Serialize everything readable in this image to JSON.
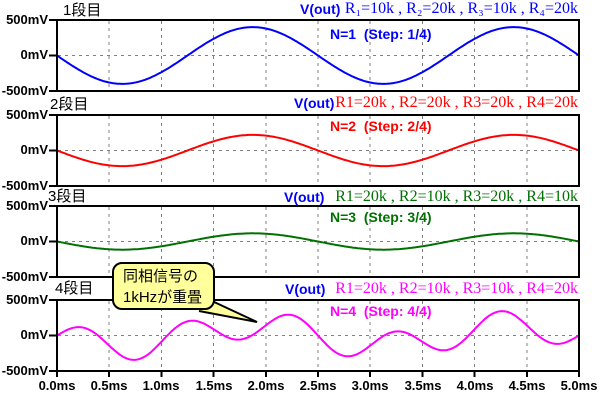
{
  "figure": {
    "background": "#FFFFFF",
    "axis_color": "#000000",
    "grid_color": "#808080",
    "x_axis_ticks": [
      "0.0ms",
      "0.5ms",
      "1.0ms",
      "1.5ms",
      "2.0ms",
      "2.5ms",
      "3.0ms",
      "3.5ms",
      "4.0ms",
      "4.5ms",
      "5.0ms"
    ],
    "y_axis_ticks": [
      "500mV",
      "0mV",
      "-500mV"
    ]
  },
  "callout": {
    "line1": "同相信号の",
    "line2": "1kHzが重畳",
    "fill_color": "#FFFF9C",
    "border_color": "#000000",
    "text_color": "#000000"
  },
  "chart_data": [
    {
      "type": "line",
      "panel_index": 1,
      "title": "1段目",
      "trace_label": "V(out)",
      "trace_label_color": "#0000FF",
      "r_values_label": "R₁=10k , R₂=20k , R₃=10k , R₄=20k",
      "step_label": "N=1  (Step: 1/4)",
      "color": "#0000FF",
      "xlim_ms": [
        0,
        5
      ],
      "ylim_mv": [
        -500,
        500
      ],
      "x_tick_step_ms": 0.5,
      "grid": true,
      "signal_model": {
        "description": "inverted 400 Hz sine, 400 mV amplitude",
        "components": [
          {
            "freq_hz": 400,
            "amplitude_mv": -400,
            "phase_deg": 0
          }
        ]
      },
      "key_points_t_ms_v_mv": [
        [
          0,
          0
        ],
        [
          0.625,
          -400
        ],
        [
          1.25,
          0
        ],
        [
          1.875,
          400
        ],
        [
          2.5,
          0
        ],
        [
          3.125,
          -400
        ],
        [
          3.75,
          0
        ],
        [
          4.375,
          400
        ],
        [
          5,
          0
        ]
      ]
    },
    {
      "type": "line",
      "panel_index": 2,
      "title": "2段目",
      "trace_label": "V(out)",
      "trace_label_color": "#0000FF",
      "r_values_label": "R1=20k , R2=20k , R3=20k , R4=20k",
      "step_label": "N=2  (Step: 2/4)",
      "color": "#FF0000",
      "xlim_ms": [
        0,
        5
      ],
      "ylim_mv": [
        -500,
        500
      ],
      "x_tick_step_ms": 0.5,
      "grid": true,
      "signal_model": {
        "description": "inverted 400 Hz sine, 220 mV amplitude",
        "components": [
          {
            "freq_hz": 400,
            "amplitude_mv": -220,
            "phase_deg": 0
          }
        ]
      },
      "key_points_t_ms_v_mv": [
        [
          0,
          0
        ],
        [
          0.625,
          -220
        ],
        [
          1.25,
          0
        ],
        [
          1.875,
          220
        ],
        [
          2.5,
          0
        ],
        [
          3.125,
          -220
        ],
        [
          3.75,
          0
        ],
        [
          4.375,
          220
        ],
        [
          5,
          0
        ]
      ]
    },
    {
      "type": "line",
      "panel_index": 3,
      "title": "3段目",
      "trace_label": "V(out)",
      "trace_label_color": "#0000FF",
      "r_values_label": "R1=20k , R2=10k , R3=20k , R4=10k",
      "step_label": "N=3  (Step: 3/4)",
      "color": "#007000",
      "xlim_ms": [
        0,
        5
      ],
      "ylim_mv": [
        -500,
        500
      ],
      "x_tick_step_ms": 0.5,
      "grid": true,
      "signal_model": {
        "description": "inverted 400 Hz sine, 115 mV amplitude",
        "components": [
          {
            "freq_hz": 400,
            "amplitude_mv": -115,
            "phase_deg": 0
          }
        ]
      },
      "key_points_t_ms_v_mv": [
        [
          0,
          0
        ],
        [
          0.625,
          -115
        ],
        [
          1.25,
          0
        ],
        [
          1.875,
          115
        ],
        [
          2.5,
          0
        ],
        [
          3.125,
          -115
        ],
        [
          3.75,
          0
        ],
        [
          4.375,
          115
        ],
        [
          5,
          0
        ]
      ]
    },
    {
      "type": "line",
      "panel_index": 4,
      "title": "4段目",
      "trace_label": "V(out)",
      "trace_label_color": "#0000FF",
      "r_values_label": "R1=20k , R2=10k , R3=10k , R4=20k",
      "step_label": "N=4  (Step: 4/4)",
      "color": "#FF00FF",
      "xlim_ms": [
        0,
        5
      ],
      "ylim_mv": [
        -500,
        500
      ],
      "x_tick_step_ms": 0.5,
      "grid": true,
      "signal_model": {
        "description": "inverted 400 Hz sine (150 mV) with superimposed 1 kHz common-mode ripple (200 mV)",
        "components": [
          {
            "freq_hz": 400,
            "amplitude_mv": -150,
            "phase_deg": 0
          },
          {
            "freq_hz": 1000,
            "amplitude_mv": 200,
            "phase_deg": 0
          }
        ]
      },
      "key_points_t_ms_v_mv": [
        [
          0,
          0
        ],
        [
          0.25,
          112
        ],
        [
          0.5,
          -143
        ],
        [
          0.75,
          -343
        ],
        [
          1,
          -88
        ],
        [
          1.25,
          200
        ],
        [
          1.5,
          88
        ],
        [
          1.75,
          -57
        ],
        [
          2,
          143
        ],
        [
          2.25,
          288
        ],
        [
          2.5,
          0
        ],
        [
          2.75,
          -288
        ],
        [
          3,
          -143
        ],
        [
          3.25,
          57
        ],
        [
          3.5,
          -88
        ],
        [
          3.75,
          -200
        ],
        [
          4,
          88
        ],
        [
          4.25,
          343
        ],
        [
          4.5,
          143
        ],
        [
          4.75,
          -112
        ],
        [
          5,
          0
        ]
      ]
    }
  ]
}
